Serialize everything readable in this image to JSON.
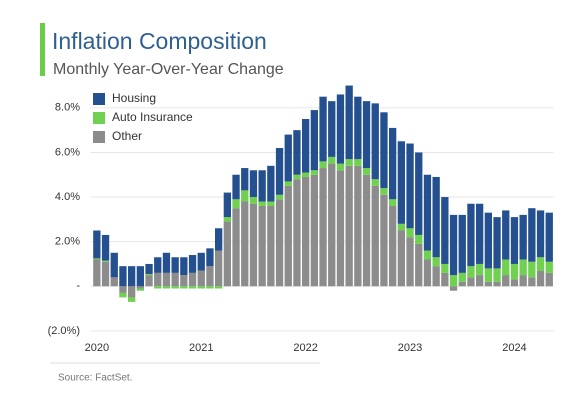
{
  "chart_data": {
    "type": "stacked_bar",
    "title": "Inflation Composition",
    "subtitle": "Monthly Year-Over-Year Change",
    "source": "Source: FactSet.",
    "categories": [
      "2020",
      null,
      null,
      null,
      null,
      null,
      null,
      null,
      null,
      null,
      null,
      null,
      "2021",
      null,
      null,
      null,
      null,
      null,
      null,
      null,
      null,
      null,
      null,
      null,
      "2022",
      null,
      null,
      null,
      null,
      null,
      null,
      null,
      null,
      null,
      null,
      null,
      "2023",
      null,
      null,
      null,
      null,
      null,
      null,
      null,
      null,
      null,
      null,
      null,
      "2024",
      null,
      null,
      null,
      null
    ],
    "series": [
      {
        "name": "Other",
        "color": "#8c8c8c",
        "values": [
          1.2,
          1.1,
          0.4,
          -0.3,
          -0.5,
          -0.1,
          0.5,
          0.6,
          0.6,
          0.6,
          0.5,
          0.6,
          0.7,
          0.9,
          1.6,
          2.9,
          3.5,
          3.8,
          3.7,
          3.6,
          3.6,
          3.9,
          4.5,
          4.8,
          4.9,
          5.0,
          5.3,
          5.5,
          5.2,
          5.4,
          5.4,
          5.0,
          4.5,
          4.1,
          3.6,
          2.5,
          2.2,
          1.9,
          1.2,
          0.9,
          0.6,
          -0.2,
          0.2,
          0.4,
          0.5,
          0.2,
          0.2,
          0.5,
          0.3,
          0.5,
          0.4,
          0.7,
          0.6
        ]
      },
      {
        "name": "Auto Insurance",
        "color": "#6fd14f",
        "values": [
          0.05,
          0.05,
          0,
          -0.2,
          -0.2,
          -0.1,
          0.05,
          -0.1,
          -0.1,
          -0.1,
          -0.1,
          -0.1,
          -0.1,
          -0.1,
          -0.1,
          0.2,
          0.4,
          0.5,
          0.3,
          0.2,
          0.2,
          0.2,
          0.2,
          0.2,
          0.2,
          0.2,
          0.3,
          0.3,
          0.3,
          0.3,
          0.3,
          0.3,
          0.3,
          0.3,
          0.3,
          0.3,
          0.4,
          0.4,
          0.4,
          0.4,
          0.4,
          0.5,
          0.4,
          0.5,
          0.5,
          0.6,
          0.6,
          0.7,
          0.7,
          0.7,
          0.7,
          0.6,
          0.5
        ]
      },
      {
        "name": "Housing",
        "color": "#24508f",
        "values": [
          1.25,
          1.15,
          1.1,
          0.9,
          0.9,
          0.9,
          0.45,
          0.7,
          0.9,
          0.7,
          0.8,
          0.8,
          0.8,
          0.8,
          1.0,
          1.1,
          1.1,
          1.0,
          1.2,
          1.4,
          1.6,
          2.1,
          2.1,
          2.0,
          2.4,
          2.7,
          2.9,
          2.5,
          3.1,
          3.3,
          2.8,
          3.0,
          3.4,
          3.4,
          3.2,
          3.7,
          3.8,
          3.7,
          3.4,
          3.6,
          3.0,
          2.7,
          2.6,
          2.8,
          2.7,
          2.5,
          2.3,
          2.2,
          2.1,
          2.0,
          2.4,
          2.1,
          2.2
        ]
      }
    ],
    "legend_order": [
      "Housing",
      "Auto Insurance",
      "Other"
    ],
    "legend": "upper left",
    "ylim": [
      -2.5,
      8.8
    ],
    "yticks": [
      {
        "value": -2,
        "label": "(2.0%)"
      },
      {
        "value": 0,
        "label": "-"
      },
      {
        "value": 2,
        "label": "2.0%"
      },
      {
        "value": 4,
        "label": "4.0%"
      },
      {
        "value": 6,
        "label": "6.0%"
      },
      {
        "value": 8,
        "label": "8.0%"
      }
    ],
    "grid": true
  }
}
